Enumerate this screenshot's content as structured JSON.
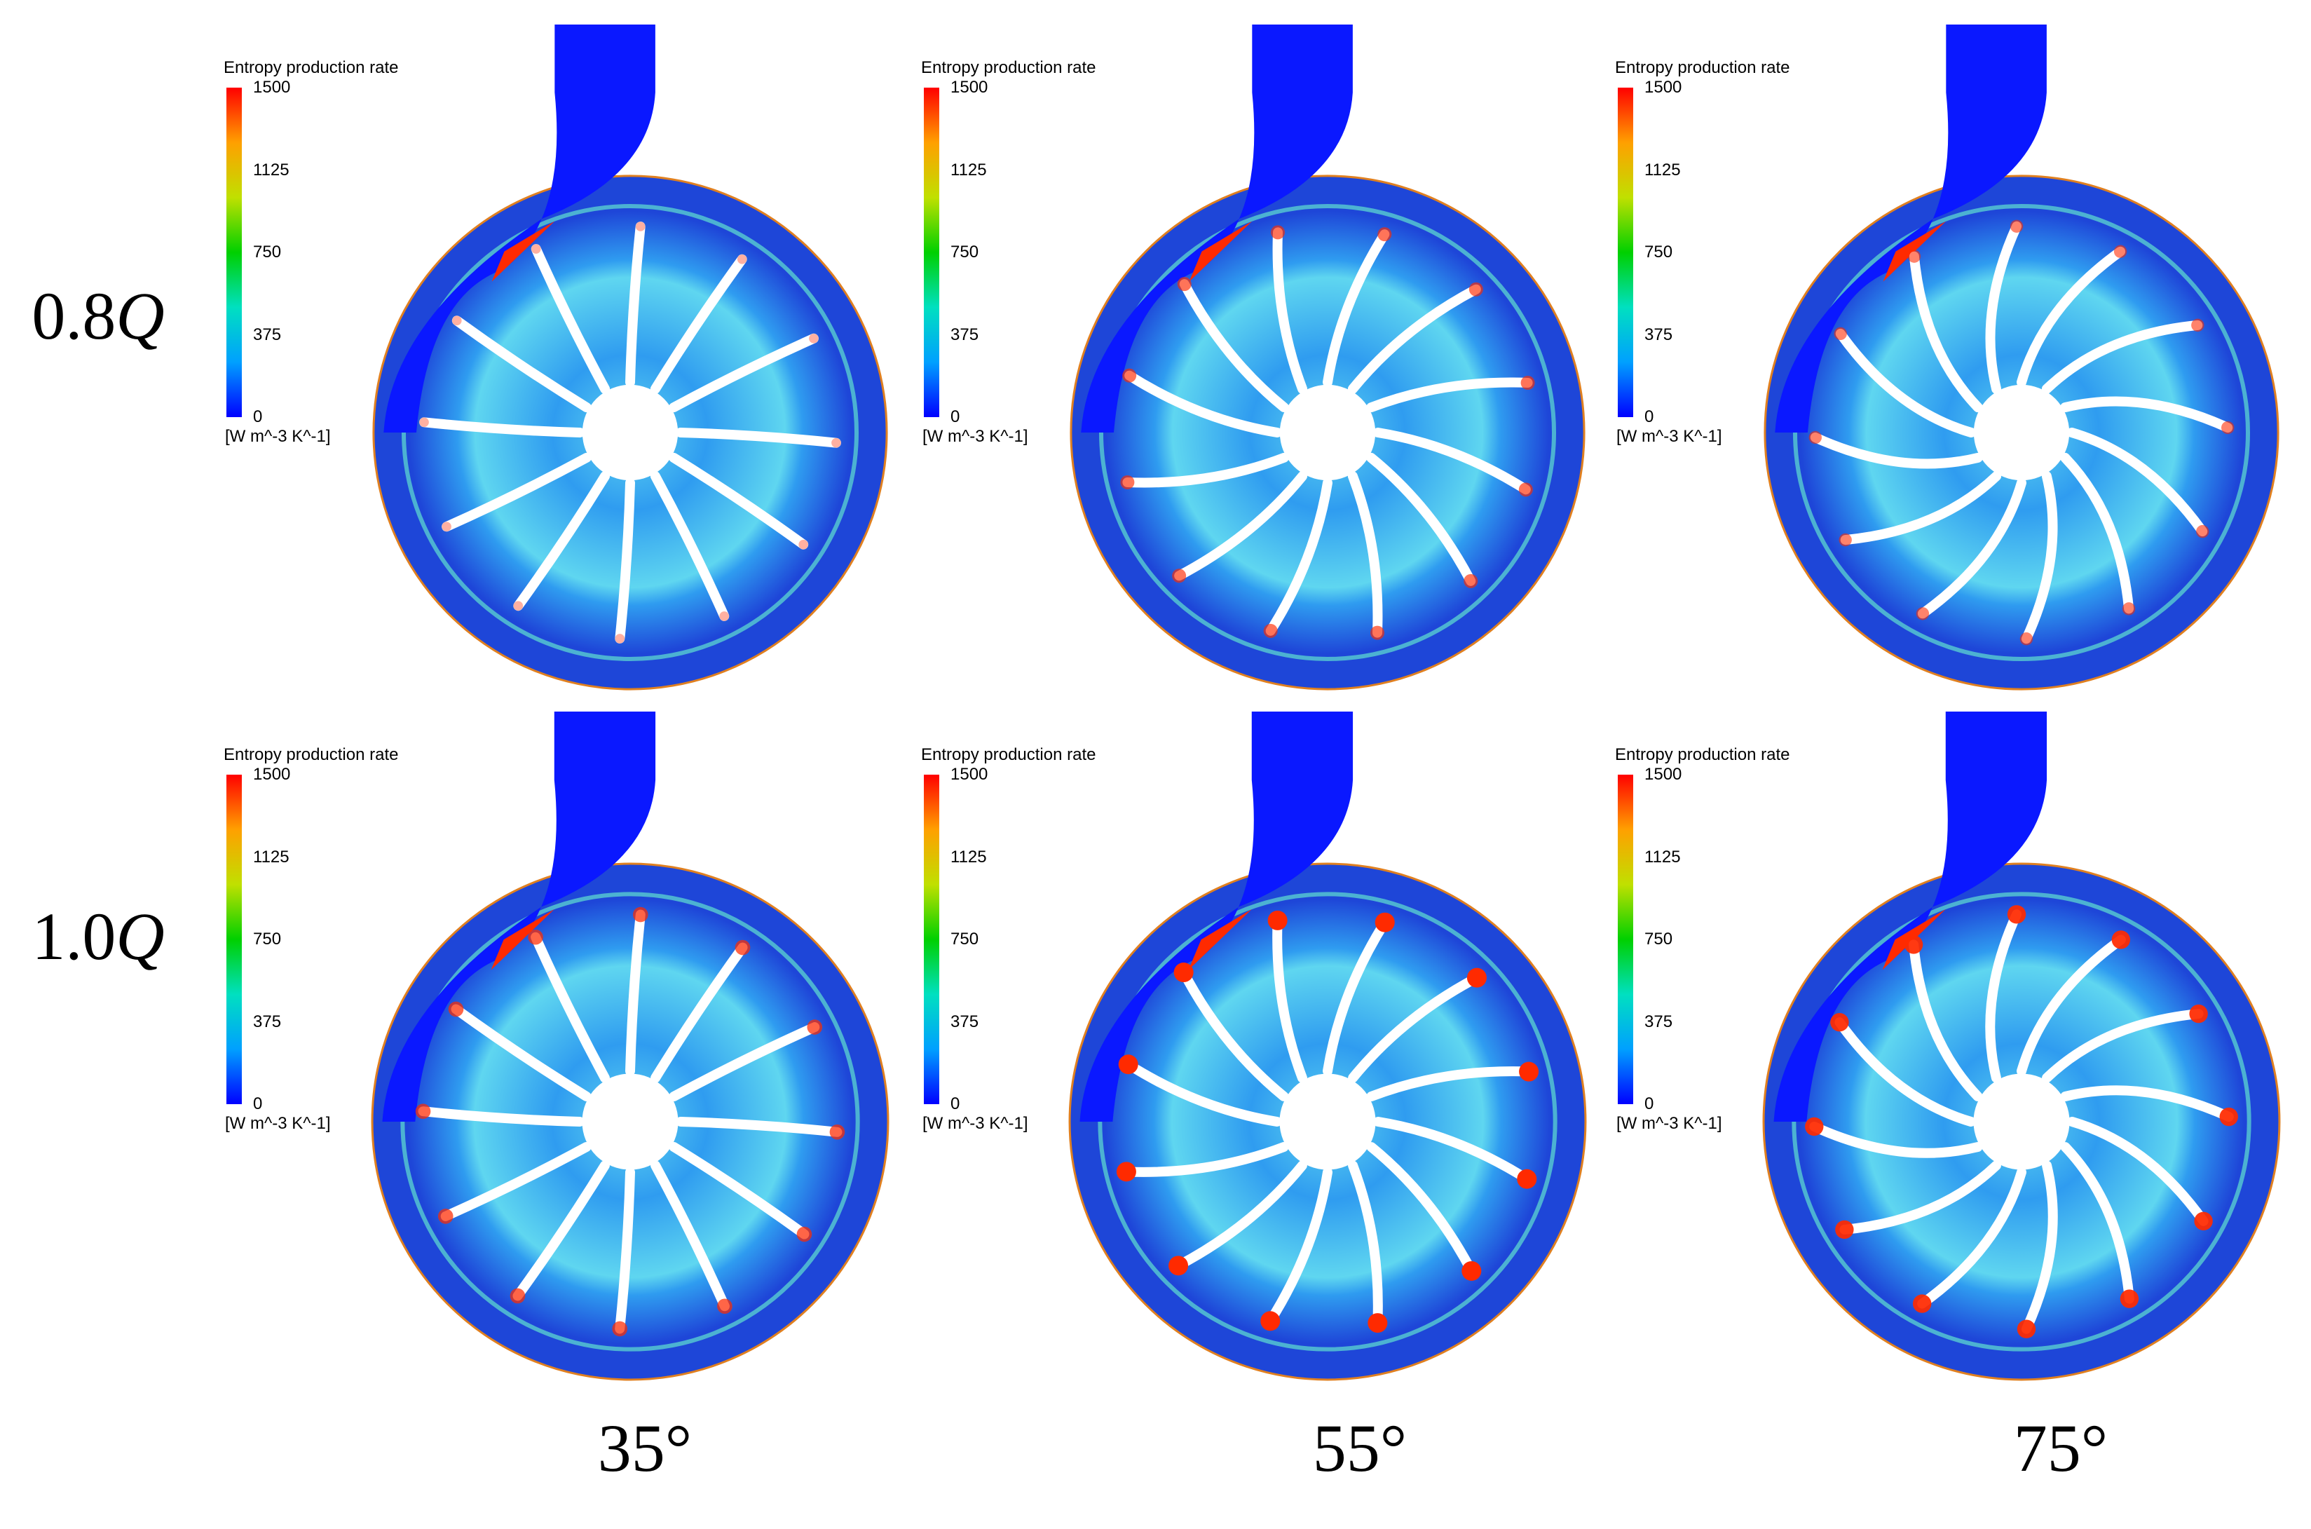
{
  "figure": {
    "rows": [
      {
        "label_value": "0.8",
        "label_symbol": "Q"
      },
      {
        "label_value": "1.0",
        "label_symbol": "Q"
      }
    ],
    "columns": [
      "35°",
      "55°",
      "75°"
    ]
  },
  "colorbar": {
    "title": "Entropy production rate",
    "ticks": [
      "1500",
      "1125",
      "750",
      "375",
      "0"
    ],
    "units": "[W m^-3 K^-1]",
    "min": 0,
    "max": 1500,
    "colormap": [
      "#0000ff",
      "#00a0ff",
      "#00e0c0",
      "#00d000",
      "#c0e000",
      "#ffa000",
      "#ff0000"
    ]
  },
  "colors": {
    "field_low": "#1e46d8",
    "field_mid": "#2f9cf0",
    "field_high": "#5fd6f0",
    "inlet": "#0a18ff",
    "blade": "#ffffff",
    "hot": "#ff2a00"
  },
  "panels": [
    {
      "row": 0,
      "col": 0,
      "blades": 12,
      "curvature": 0.05,
      "tip_hot": 0.1
    },
    {
      "row": 0,
      "col": 1,
      "blades": 12,
      "curvature": 0.28,
      "tip_hot": 0.5
    },
    {
      "row": 0,
      "col": 2,
      "blades": 12,
      "curvature": 0.5,
      "tip_hot": 0.4
    },
    {
      "row": 1,
      "col": 0,
      "blades": 12,
      "curvature": 0.05,
      "tip_hot": 0.6
    },
    {
      "row": 1,
      "col": 1,
      "blades": 12,
      "curvature": 0.28,
      "tip_hot": 1.0
    },
    {
      "row": 1,
      "col": 2,
      "blades": 12,
      "curvature": 0.5,
      "tip_hot": 0.9
    }
  ]
}
